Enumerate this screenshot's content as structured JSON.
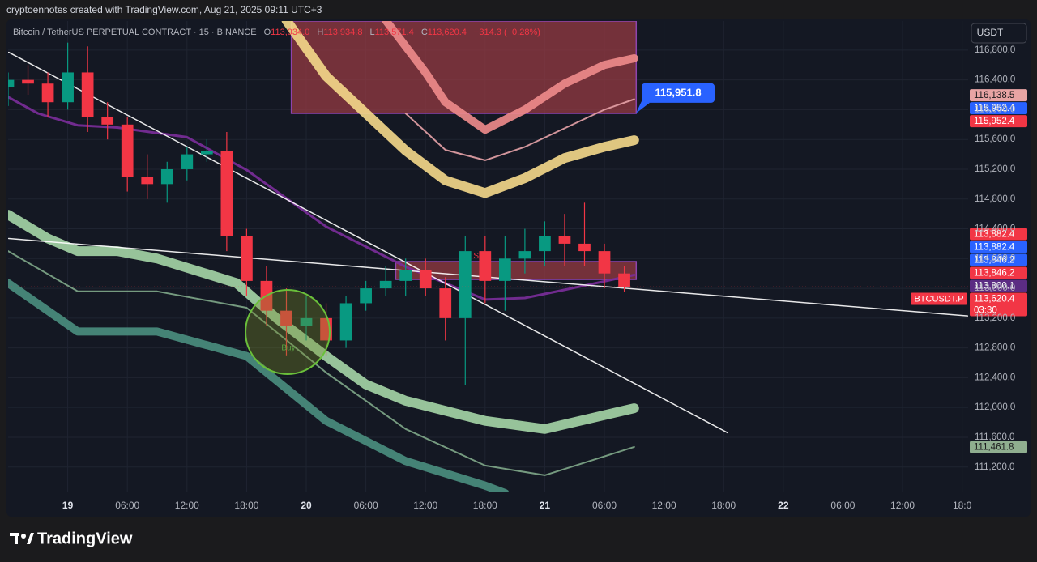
{
  "header": {
    "attribution": "cryptoennotes created with TradingView.com, Aug 21, 2025 09:11 UTC+3",
    "symbol": "Bitcoin / TetherUS PERPETUAL CONTRACT · 15 · BINANCE",
    "ohlc": [
      {
        "key": "O",
        "value": "113,934.0"
      },
      {
        "key": "H",
        "value": "113,934.8"
      },
      {
        "key": "L",
        "value": "113,571.4"
      },
      {
        "key": "C",
        "value": "113,620.4"
      }
    ],
    "change": "−314.3 (−0.28%)",
    "currency": "USDT",
    "logo": "TradingView"
  },
  "chart_data": {
    "type": "candlestick",
    "x": [
      18,
      20,
      22,
      24,
      26,
      28,
      30,
      32,
      34,
      36,
      38,
      40,
      42,
      44,
      46,
      48,
      50,
      52,
      54,
      56,
      58,
      60,
      62,
      64,
      66,
      68,
      70,
      72,
      74,
      76,
      78,
      80
    ],
    "open": [
      116300,
      116400,
      116350,
      116100,
      116500,
      115900,
      115800,
      115100,
      115000,
      115200,
      115400,
      115450,
      114300,
      113700,
      113300,
      113100,
      113200,
      112900,
      113400,
      113600,
      113700,
      113850,
      113600,
      113200,
      114100,
      113700,
      114000,
      114100,
      114300,
      114200,
      114100,
      113800
    ],
    "high": [
      116500,
      116600,
      116500,
      116900,
      116850,
      116100,
      115900,
      115400,
      115300,
      115500,
      115600,
      115700,
      114400,
      113900,
      113600,
      113500,
      113400,
      113500,
      113700,
      113900,
      114000,
      114000,
      113750,
      114300,
      114300,
      114300,
      114400,
      114500,
      114600,
      114750,
      114200,
      113900
    ],
    "low": [
      116050,
      116200,
      115900,
      116000,
      115700,
      115600,
      114900,
      114800,
      114750,
      115050,
      115300,
      114100,
      113500,
      113100,
      112700,
      112900,
      112700,
      112800,
      113300,
      113500,
      113500,
      113500,
      112900,
      112300,
      113400,
      113300,
      113800,
      113900,
      113900,
      113900,
      113600,
      113550
    ],
    "close": [
      116400,
      116350,
      116100,
      116500,
      115900,
      115800,
      115100,
      115000,
      115200,
      115400,
      115450,
      114300,
      113700,
      113300,
      113100,
      113200,
      112900,
      113400,
      113600,
      113700,
      113850,
      113600,
      113200,
      114100,
      113700,
      114000,
      114100,
      114300,
      114200,
      114100,
      113800,
      113620
    ],
    "up_color": "#089981",
    "down_color": "#f23645",
    "xlim": [
      18,
      114.6
    ],
    "xticks": [
      {
        "value": 24,
        "label": "19"
      },
      {
        "value": 30,
        "label": "06:00"
      },
      {
        "value": 36,
        "label": "12:00"
      },
      {
        "value": 42,
        "label": "18:00"
      },
      {
        "value": 48,
        "label": "20"
      },
      {
        "value": 54,
        "label": "06:00"
      },
      {
        "value": 60,
        "label": "12:00"
      },
      {
        "value": 66,
        "label": "18:00"
      },
      {
        "value": 72,
        "label": "21"
      },
      {
        "value": 78,
        "label": "06:00"
      },
      {
        "value": 84,
        "label": "12:00"
      },
      {
        "value": 90,
        "label": "18:00"
      },
      {
        "value": 96,
        "label": "22"
      },
      {
        "value": 102,
        "label": "06:00"
      },
      {
        "value": 108,
        "label": "12:00"
      },
      {
        "value": 114,
        "label": "18:0"
      }
    ],
    "ylim": [
      110860,
      117190
    ],
    "yticks": [
      {
        "value": 111200,
        "label": "111,200.0"
      },
      {
        "value": 111600,
        "label": "111,600.0"
      },
      {
        "value": 112000,
        "label": "112,000.0"
      },
      {
        "value": 112400,
        "label": "112,400.0"
      },
      {
        "value": 112800,
        "label": "112,800.0"
      },
      {
        "value": 113200,
        "label": "113,200.0"
      },
      {
        "value": 113600,
        "label": "113,600.0"
      },
      {
        "value": 114000,
        "label": "114,000.0"
      },
      {
        "value": 114400,
        "label": "114,400.0"
      },
      {
        "value": 114800,
        "label": "114,800.0"
      },
      {
        "value": 115200,
        "label": "115,200.0"
      },
      {
        "value": 115600,
        "label": "115,600.0"
      },
      {
        "value": 116000,
        "label": "116,000.0"
      },
      {
        "value": 116400,
        "label": "116,400.0"
      },
      {
        "value": 116800,
        "label": "116,800.0"
      }
    ],
    "grid": true,
    "zones": [
      {
        "x": [
          46.5,
          81.2
        ],
        "values": [
          115950,
          117190
        ],
        "color": "#9c3c45",
        "edge": "#8e44ad"
      },
      {
        "x": [
          57,
          81.2
        ],
        "values": [
          113720,
          113960
        ],
        "color": "#9c3c45",
        "edge": "#8e44ad"
      }
    ],
    "overlays": [
      {
        "color": "#f5d98b",
        "width": 12,
        "x": [
          46,
          50,
          54,
          58,
          62,
          66,
          70,
          74,
          78,
          81
        ],
        "values": [
          117200,
          116450,
          115950,
          115450,
          115050,
          114880,
          115080,
          115350,
          115500,
          115590
        ]
      },
      {
        "color": "#f08c8c",
        "width": 10,
        "x": [
          56,
          60,
          62,
          66,
          70,
          74,
          78,
          81
        ],
        "values": [
          117200,
          116500,
          116100,
          115730,
          116000,
          116350,
          116600,
          116690
        ]
      },
      {
        "color": "#e7a3a8",
        "width": 2,
        "x": [
          58,
          62,
          66,
          70,
          74,
          78,
          81
        ],
        "values": [
          115950,
          115460,
          115320,
          115500,
          115750,
          116000,
          116140
        ]
      },
      {
        "color": "#a5d6a7",
        "width": 12,
        "x": [
          18,
          22,
          25,
          29,
          33,
          41,
          45,
          50,
          54,
          58,
          66,
          72,
          81
        ],
        "values": [
          114590,
          114270,
          114100,
          114100,
          114000,
          113670,
          113200,
          112690,
          112310,
          112090,
          111820,
          111710,
          111990
        ]
      },
      {
        "color": "#7fa88a",
        "width": 2,
        "x": [
          18,
          25,
          33,
          42,
          50,
          58,
          66,
          72,
          81
        ],
        "values": [
          114100,
          113560,
          113560,
          113340,
          112470,
          111710,
          111220,
          111090,
          111470
        ]
      },
      {
        "color": "#4a8f80",
        "width": 10,
        "x": [
          18,
          25,
          33,
          42,
          50,
          58,
          66,
          68
        ],
        "values": [
          113670,
          113020,
          113020,
          112690,
          111820,
          111280,
          110950,
          110850
        ]
      },
      {
        "color": "#7b2d9b",
        "width": 3,
        "x": [
          18,
          21,
          25,
          29,
          36,
          42,
          50,
          58,
          66,
          70,
          74,
          81
        ],
        "values": [
          116170,
          115950,
          115790,
          115760,
          115630,
          115190,
          114430,
          113890,
          113450,
          113470,
          113580,
          113780
        ]
      },
      {
        "color": "#ffffff",
        "width": 1.5,
        "x": [
          18.06,
          90.4
        ],
        "values": [
          116770,
          111660
        ]
      },
      {
        "color": "#ffffff",
        "width": 1.5,
        "x": [
          18.06,
          114.55
        ],
        "values": [
          114270,
          113230
        ]
      }
    ],
    "annotations": [
      {
        "text": "Buy",
        "x": 46.2,
        "y": 112800,
        "color": "#4caf50"
      },
      {
        "text": "Sell",
        "x": 65.5,
        "y": 114030,
        "color": "#f23645"
      }
    ],
    "callout": {
      "value": 115951.8,
      "label": "115,951.8",
      "color": "#2962ff"
    },
    "price_tags": [
      {
        "value": 116138.5,
        "label": "116,138.5",
        "color": "#e8a4a4",
        "text_color": "#1b1b1d"
      },
      {
        "value": 115952.4,
        "label": "115,952.4",
        "color": "#2962ff",
        "text_color": "#ffffff"
      },
      {
        "value": 115952.4,
        "label": "115,952.4",
        "color": "#f23645",
        "text_color": "#ffffff"
      },
      {
        "value": 113882.4,
        "label": "113,882.4",
        "color": "#f23645",
        "text_color": "#ffffff"
      },
      {
        "value": 113882.4,
        "label": "113,882.4",
        "color": "#2962ff",
        "text_color": "#ffffff"
      },
      {
        "value": 113846.2,
        "label": "113,846.2",
        "color": "#2962ff",
        "text_color": "#ffffff"
      },
      {
        "value": 113846.2,
        "label": "113,846.2",
        "color": "#f23645",
        "text_color": "#ffffff"
      },
      {
        "value": 113800.1,
        "label": "113,800.1",
        "color": "#5b2c83",
        "text_color": "#ffffff"
      },
      {
        "value": 113620.4,
        "label": "113,620.4",
        "countdown": "03:30",
        "symbol": "BTCUSDT.P",
        "color": "#f23645",
        "text_color": "#ffffff"
      },
      {
        "value": 111461.8,
        "label": "111,461.8",
        "color": "#8fae8f",
        "text_color": "#1b1b1d"
      }
    ]
  }
}
